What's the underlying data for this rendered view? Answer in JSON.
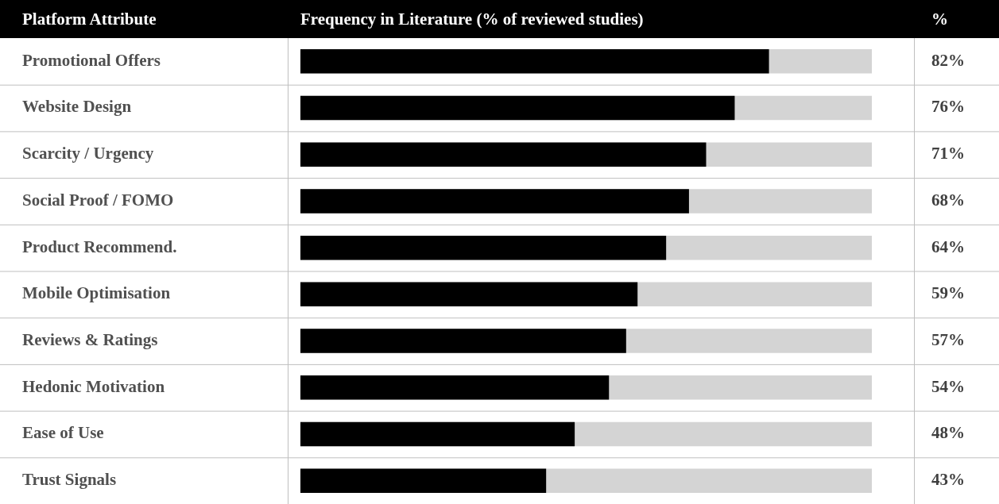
{
  "chart_data": {
    "type": "bar",
    "orientation": "horizontal",
    "ylabel": "Platform Attribute",
    "title": "Frequency in Literature (% of reviewed studies)",
    "annotations": [
      "%"
    ],
    "categories": [
      "Promotional Offers",
      "Website Design",
      "Scarcity / Urgency",
      "Social Proof / FOMO",
      "Product Recommend.",
      "Mobile Optimisation",
      "Reviews & Ratings",
      "Hedonic Motivation",
      "Ease of Use",
      "Trust Signals"
    ],
    "values": [
      82,
      76,
      71,
      68,
      64,
      59,
      57,
      54,
      48,
      43
    ],
    "value_labels": [
      "82%",
      "76%",
      "71%",
      "68%",
      "64%",
      "59%",
      "57%",
      "54%",
      "48%",
      "43%"
    ],
    "color": "#000000",
    "xlim": [
      0,
      100
    ],
    "tick_labels": false
  }
}
